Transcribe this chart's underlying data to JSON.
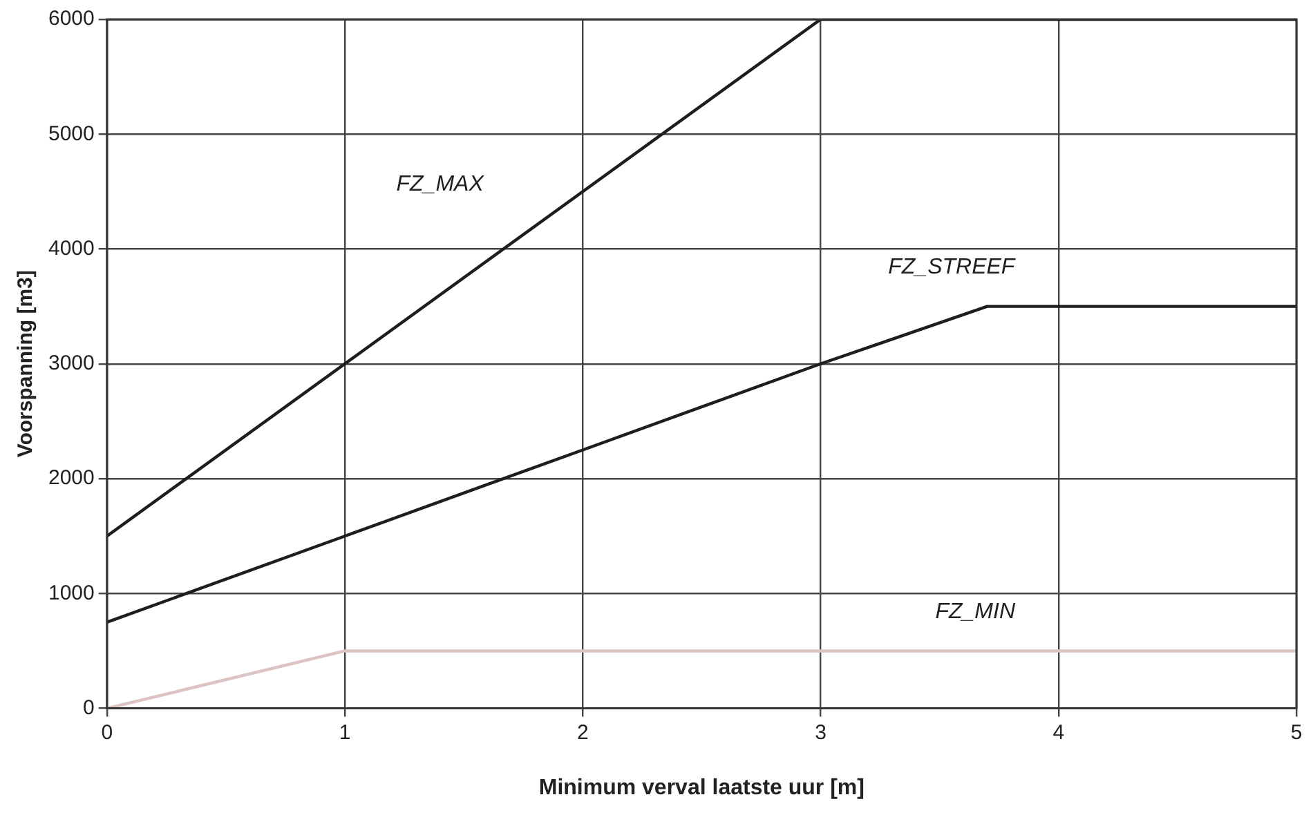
{
  "chart_data": {
    "type": "line",
    "xlabel": "Minimum verval laatste uur [m]",
    "ylabel": "Voorspanning [m3]",
    "xlim": [
      0,
      5
    ],
    "xticks": [
      0,
      1,
      2,
      3,
      4,
      5
    ],
    "ylim": [
      0,
      6000
    ],
    "yticks": [
      0,
      1000,
      2000,
      3000,
      4000,
      5000,
      6000
    ],
    "grid": true,
    "legend": false,
    "marker": "none",
    "series": [
      {
        "name": "FZ_MAX",
        "color": "#1e1e1e",
        "x": [
          0,
          3,
          5
        ],
        "values": [
          1500,
          6000,
          6000
        ]
      },
      {
        "name": "FZ_STREEF",
        "color": "#1e1e1e",
        "x": [
          0,
          1,
          2,
          3,
          3.7,
          5
        ],
        "values": [
          750,
          1500,
          2250,
          3000,
          3500,
          3500
        ]
      },
      {
        "name": "FZ_MIN",
        "color": "#dcc4c4",
        "x": [
          0,
          1,
          5
        ],
        "values": [
          0,
          500,
          500
        ]
      }
    ]
  }
}
